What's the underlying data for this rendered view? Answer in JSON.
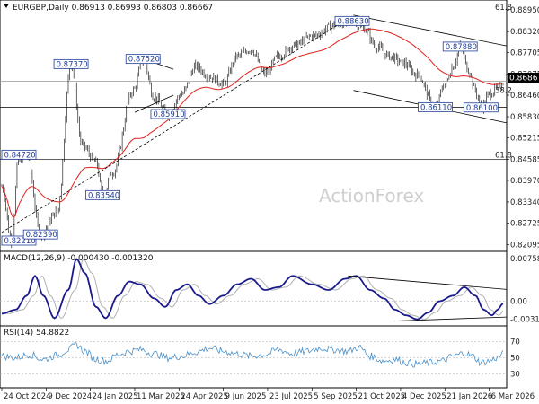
{
  "chart_data": {
    "type": "candlestick",
    "title": "EURGBP,Daily  0.86913 0.86993 0.86803 0.86667",
    "watermark": "ActionForex",
    "colors": {
      "candle": "#000000",
      "ma": "#e0201b",
      "trend": "#000000",
      "macd": "#1a1a8c",
      "signal": "#b0b0b0",
      "rsi": "#4a90c8",
      "current_tag": "#000000"
    },
    "x_axis": {
      "labels": [
        "24 Oct 2024",
        "9 Dec 2024",
        "24 Jan 2025",
        "11 Mar 2025",
        "24 Apr 2025",
        "9 Jun 2025",
        "23 Jul 2025",
        "5 Sep 2025",
        "21 Oct 2025",
        "4 Dec 2025",
        "21 Jan 2026",
        "6 Mar 2026"
      ],
      "positions": [
        0,
        32,
        64,
        96,
        128,
        160,
        192,
        224,
        256,
        288,
        320,
        352
      ]
    },
    "price_panel": {
      "ylim": [
        0.82,
        0.8898
      ],
      "ticks": [
        "0.88950",
        "0.88320",
        "0.87705",
        "0.87075",
        "0.86460",
        "0.85830",
        "0.85215",
        "0.84585",
        "0.83970",
        "0.83340",
        "0.82725",
        "0.82095"
      ],
      "current_price": "0.86867",
      "current_value": 0.86867,
      "fib_levels": [
        {
          "label": "61.8",
          "value": 0.889
        },
        {
          "label": "38.2",
          "value": 0.8648
        },
        {
          "label": "61.8",
          "value": 0.8459
        }
      ],
      "horizontal_lines": [
        0.86867,
        0.8611,
        0.8459
      ],
      "annotations": [
        {
          "text": "0.82210",
          "t": 7,
          "value": 0.8221
        },
        {
          "text": "0.84720",
          "t": 12,
          "value": 0.8472
        },
        {
          "text": "0.82390",
          "t": 28,
          "value": 0.8239
        },
        {
          "text": "0.87370",
          "t": 50,
          "value": 0.8737
        },
        {
          "text": "0.83540",
          "t": 73,
          "value": 0.8354
        },
        {
          "text": "0.87520",
          "t": 102,
          "value": 0.8752
        },
        {
          "text": "0.85910",
          "t": 120,
          "value": 0.8591
        },
        {
          "text": "0.88630",
          "t": 253,
          "value": 0.8863
        },
        {
          "text": "0.86110",
          "t": 313,
          "value": 0.8611
        },
        {
          "text": "0.87880",
          "t": 331,
          "value": 0.8788
        },
        {
          "text": "0.86100",
          "t": 346,
          "value": 0.861
        }
      ],
      "trendlines": [
        {
          "from": [
            0,
            0.8245
          ],
          "to": [
            254,
            0.888
          ],
          "dashed": true
        },
        {
          "from": [
            254,
            0.888
          ],
          "to": [
            375,
            0.879
          ],
          "dashed": false
        },
        {
          "from": [
            254,
            0.866
          ],
          "to": [
            375,
            0.8565
          ],
          "dashed": false
        },
        {
          "from": [
            102,
            0.8752
          ],
          "to": [
            124,
            0.8722
          ],
          "dashed": false
        },
        {
          "from": [
            96,
            0.8596
          ],
          "to": [
            124,
            0.8646
          ],
          "dashed": false
        }
      ],
      "anchors": [
        [
          0,
          0.838
        ],
        [
          7,
          0.8221
        ],
        [
          12,
          0.8455
        ],
        [
          18,
          0.8472
        ],
        [
          28,
          0.8239
        ],
        [
          40,
          0.8305
        ],
        [
          50,
          0.8737
        ],
        [
          58,
          0.85
        ],
        [
          68,
          0.845
        ],
        [
          73,
          0.8354
        ],
        [
          80,
          0.842
        ],
        [
          95,
          0.866
        ],
        [
          102,
          0.8752
        ],
        [
          110,
          0.864
        ],
        [
          120,
          0.8591
        ],
        [
          130,
          0.865
        ],
        [
          140,
          0.873
        ],
        [
          150,
          0.87
        ],
        [
          160,
          0.868
        ],
        [
          170,
          0.876
        ],
        [
          180,
          0.878
        ],
        [
          190,
          0.871
        ],
        [
          200,
          0.876
        ],
        [
          210,
          0.879
        ],
        [
          225,
          0.882
        ],
        [
          240,
          0.885
        ],
        [
          253,
          0.8863
        ],
        [
          262,
          0.884
        ],
        [
          270,
          0.879
        ],
        [
          280,
          0.876
        ],
        [
          290,
          0.874
        ],
        [
          300,
          0.8705
        ],
        [
          313,
          0.8611
        ],
        [
          320,
          0.868
        ],
        [
          326,
          0.873
        ],
        [
          331,
          0.8788
        ],
        [
          337,
          0.872
        ],
        [
          342,
          0.866
        ],
        [
          346,
          0.861
        ],
        [
          352,
          0.865
        ],
        [
          358,
          0.8665
        ],
        [
          362,
          0.8687
        ]
      ]
    },
    "macd_panel": {
      "label": "MACD(12,26,9) -0.000430 -0.001320",
      "ylim": [
        -0.0039,
        0.0079
      ],
      "ticks": [
        "0.007581",
        "0.00",
        "-0.003183"
      ],
      "anchors": [
        [
          0,
          -0.0022
        ],
        [
          10,
          -0.0015
        ],
        [
          18,
          0.001
        ],
        [
          24,
          0.0045
        ],
        [
          30,
          0.001
        ],
        [
          38,
          -0.003
        ],
        [
          48,
          0.002
        ],
        [
          54,
          0.0075
        ],
        [
          60,
          0.005
        ],
        [
          68,
          -0.001
        ],
        [
          75,
          -0.003
        ],
        [
          84,
          0.001
        ],
        [
          92,
          0.0035
        ],
        [
          100,
          0.003
        ],
        [
          110,
          0.0005
        ],
        [
          118,
          -0.001
        ],
        [
          126,
          0.002
        ],
        [
          134,
          0.003
        ],
        [
          142,
          0.001
        ],
        [
          150,
          -0.0005
        ],
        [
          160,
          0.001
        ],
        [
          170,
          0.003
        ],
        [
          180,
          0.004
        ],
        [
          190,
          0.002
        ],
        [
          200,
          0.0025
        ],
        [
          210,
          0.0045
        ],
        [
          224,
          0.003
        ],
        [
          236,
          0.002
        ],
        [
          248,
          0.004
        ],
        [
          256,
          0.0045
        ],
        [
          266,
          0.002
        ],
        [
          276,
          0.0005
        ],
        [
          284,
          -0.0015
        ],
        [
          292,
          -0.0025
        ],
        [
          300,
          -0.0032
        ],
        [
          308,
          -0.002
        ],
        [
          316,
          0.0
        ],
        [
          326,
          0.001
        ],
        [
          334,
          0.0025
        ],
        [
          342,
          0.001
        ],
        [
          348,
          -0.0015
        ],
        [
          354,
          -0.0025
        ],
        [
          358,
          -0.0015
        ],
        [
          362,
          -0.0004
        ]
      ],
      "trendlines": [
        {
          "from": [
            250,
            0.0045
          ],
          "to": [
            375,
            0.0021
          ]
        },
        {
          "from": [
            284,
            -0.0035
          ],
          "to": [
            375,
            -0.0028
          ]
        }
      ]
    },
    "rsi_panel": {
      "label": "RSI(14) 54.8822",
      "ylim": [
        15,
        85
      ],
      "ticks": [
        "70",
        "50",
        "30"
      ],
      "levels": [
        70,
        50,
        30
      ],
      "anchors": [
        [
          0,
          52
        ],
        [
          10,
          50
        ],
        [
          20,
          54
        ],
        [
          30,
          48
        ],
        [
          40,
          53
        ],
        [
          48,
          60
        ],
        [
          54,
          66
        ],
        [
          60,
          58
        ],
        [
          68,
          48
        ],
        [
          76,
          46
        ],
        [
          84,
          54
        ],
        [
          92,
          58
        ],
        [
          100,
          60
        ],
        [
          110,
          55
        ],
        [
          120,
          50
        ],
        [
          130,
          52
        ],
        [
          140,
          57
        ],
        [
          150,
          62
        ],
        [
          160,
          58
        ],
        [
          170,
          55
        ],
        [
          180,
          52
        ],
        [
          190,
          54
        ],
        [
          200,
          60
        ],
        [
          210,
          55
        ],
        [
          220,
          58
        ],
        [
          230,
          62
        ],
        [
          240,
          60
        ],
        [
          250,
          58
        ],
        [
          258,
          63
        ],
        [
          266,
          52
        ],
        [
          276,
          46
        ],
        [
          284,
          48
        ],
        [
          292,
          44
        ],
        [
          300,
          42
        ],
        [
          310,
          44
        ],
        [
          318,
          46
        ],
        [
          326,
          52
        ],
        [
          334,
          56
        ],
        [
          340,
          52
        ],
        [
          346,
          44
        ],
        [
          352,
          46
        ],
        [
          358,
          50
        ],
        [
          362,
          55
        ]
      ]
    }
  }
}
